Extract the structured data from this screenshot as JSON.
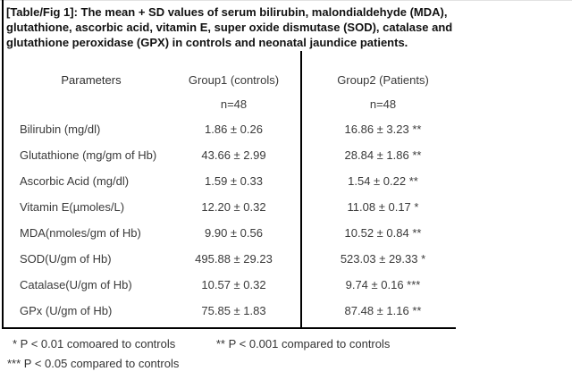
{
  "title": "[Table/Fig 1]: The mean + SD values of serum bilirubin, malondialdehyde (MDA), glutathione, ascorbic acid, vitamin E, super oxide dismutase (SOD), catalase and glutathione peroxidase (GPX) in controls and neonatal jaundice patients.",
  "table": {
    "columns": [
      "Parameters",
      "Group1 (controls)",
      "Group2 (Patients)"
    ],
    "n_labels": [
      "n=48",
      "n=48"
    ],
    "rows": [
      {
        "parameter": "Bilirubin (mg/dl)",
        "group1": "1.86 ± 0.26",
        "group2": "16.86 ± 3.23 **"
      },
      {
        "parameter": "Glutathione (mg/gm of Hb)",
        "group1": "43.66 ± 2.99",
        "group2": "28.84 ± 1.86 **"
      },
      {
        "parameter": "Ascorbic Acid (mg/dl)",
        "group1": "1.59 ± 0.33",
        "group2": "1.54 ± 0.22 **"
      },
      {
        "parameter": "Vitamin E(µmoles/L)",
        "group1": "12.20 ± 0.32",
        "group2": "11.08 ± 0.17 *"
      },
      {
        "parameter": "MDA(nmoles/gm of Hb)",
        "group1": "9.90 ± 0.56",
        "group2": "10.52 ± 0.84 **"
      },
      {
        "parameter": "SOD(U/gm of Hb)",
        "group1": "495.88 ± 29.23",
        "group2": "523.03 ± 29.33 *"
      },
      {
        "parameter": "Catalase(U/gm of Hb)",
        "group1": "10.57 ± 0.32",
        "group2": "9.74 ± 0.16 ***"
      },
      {
        "parameter": "GPx (U/gm of Hb)",
        "group1": "75.85 ± 1.83",
        "group2": "87.48 ± 1.16 **"
      }
    ]
  },
  "footnotes": [
    "* P < 0.01 comoared to controls",
    "** P < 0.001 compared to controls",
    "*** P < 0.05 compared to controls"
  ]
}
